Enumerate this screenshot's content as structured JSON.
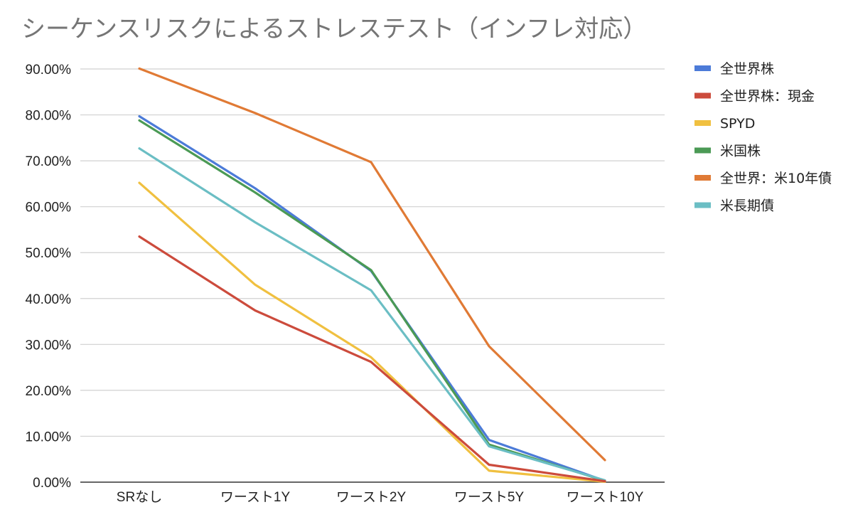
{
  "chart_data": {
    "type": "line",
    "title": "シーケンスリスクによるストレステスト（インフレ対応）",
    "xlabel": "",
    "ylabel": "",
    "categories": [
      "SRなし",
      "ワースト1Y",
      "ワースト2Y",
      "ワースト5Y",
      "ワースト10Y"
    ],
    "ylim": [
      0,
      90
    ],
    "y_ticks": [
      0,
      10,
      20,
      30,
      40,
      50,
      60,
      70,
      80,
      90
    ],
    "y_tick_labels": [
      "0.00%",
      "10.00%",
      "20.00%",
      "30.00%",
      "40.00%",
      "50.00%",
      "60.00%",
      "70.00%",
      "80.00%",
      "90.00%"
    ],
    "grid": true,
    "legend_position": "right",
    "series": [
      {
        "name": "全世界株",
        "color": "#4c7bd8",
        "values": [
          79.7,
          64.0,
          46.0,
          9.2,
          0.3
        ]
      },
      {
        "name": "全世界株：現金",
        "color": "#cc4b3c",
        "values": [
          53.5,
          37.4,
          26.2,
          3.8,
          0.2
        ]
      },
      {
        "name": "SPYD",
        "color": "#f0c040",
        "values": [
          65.2,
          43.0,
          27.2,
          2.5,
          0.1
        ]
      },
      {
        "name": "米国株",
        "color": "#4b9a55",
        "values": [
          78.8,
          63.1,
          46.2,
          8.2,
          0.3
        ]
      },
      {
        "name": "全世界：米10年債",
        "color": "#e07a35",
        "values": [
          90.1,
          80.4,
          69.7,
          29.6,
          4.8
        ]
      },
      {
        "name": "米長期債",
        "color": "#6bbec4",
        "values": [
          72.7,
          56.6,
          41.8,
          7.8,
          0.4
        ]
      }
    ]
  }
}
